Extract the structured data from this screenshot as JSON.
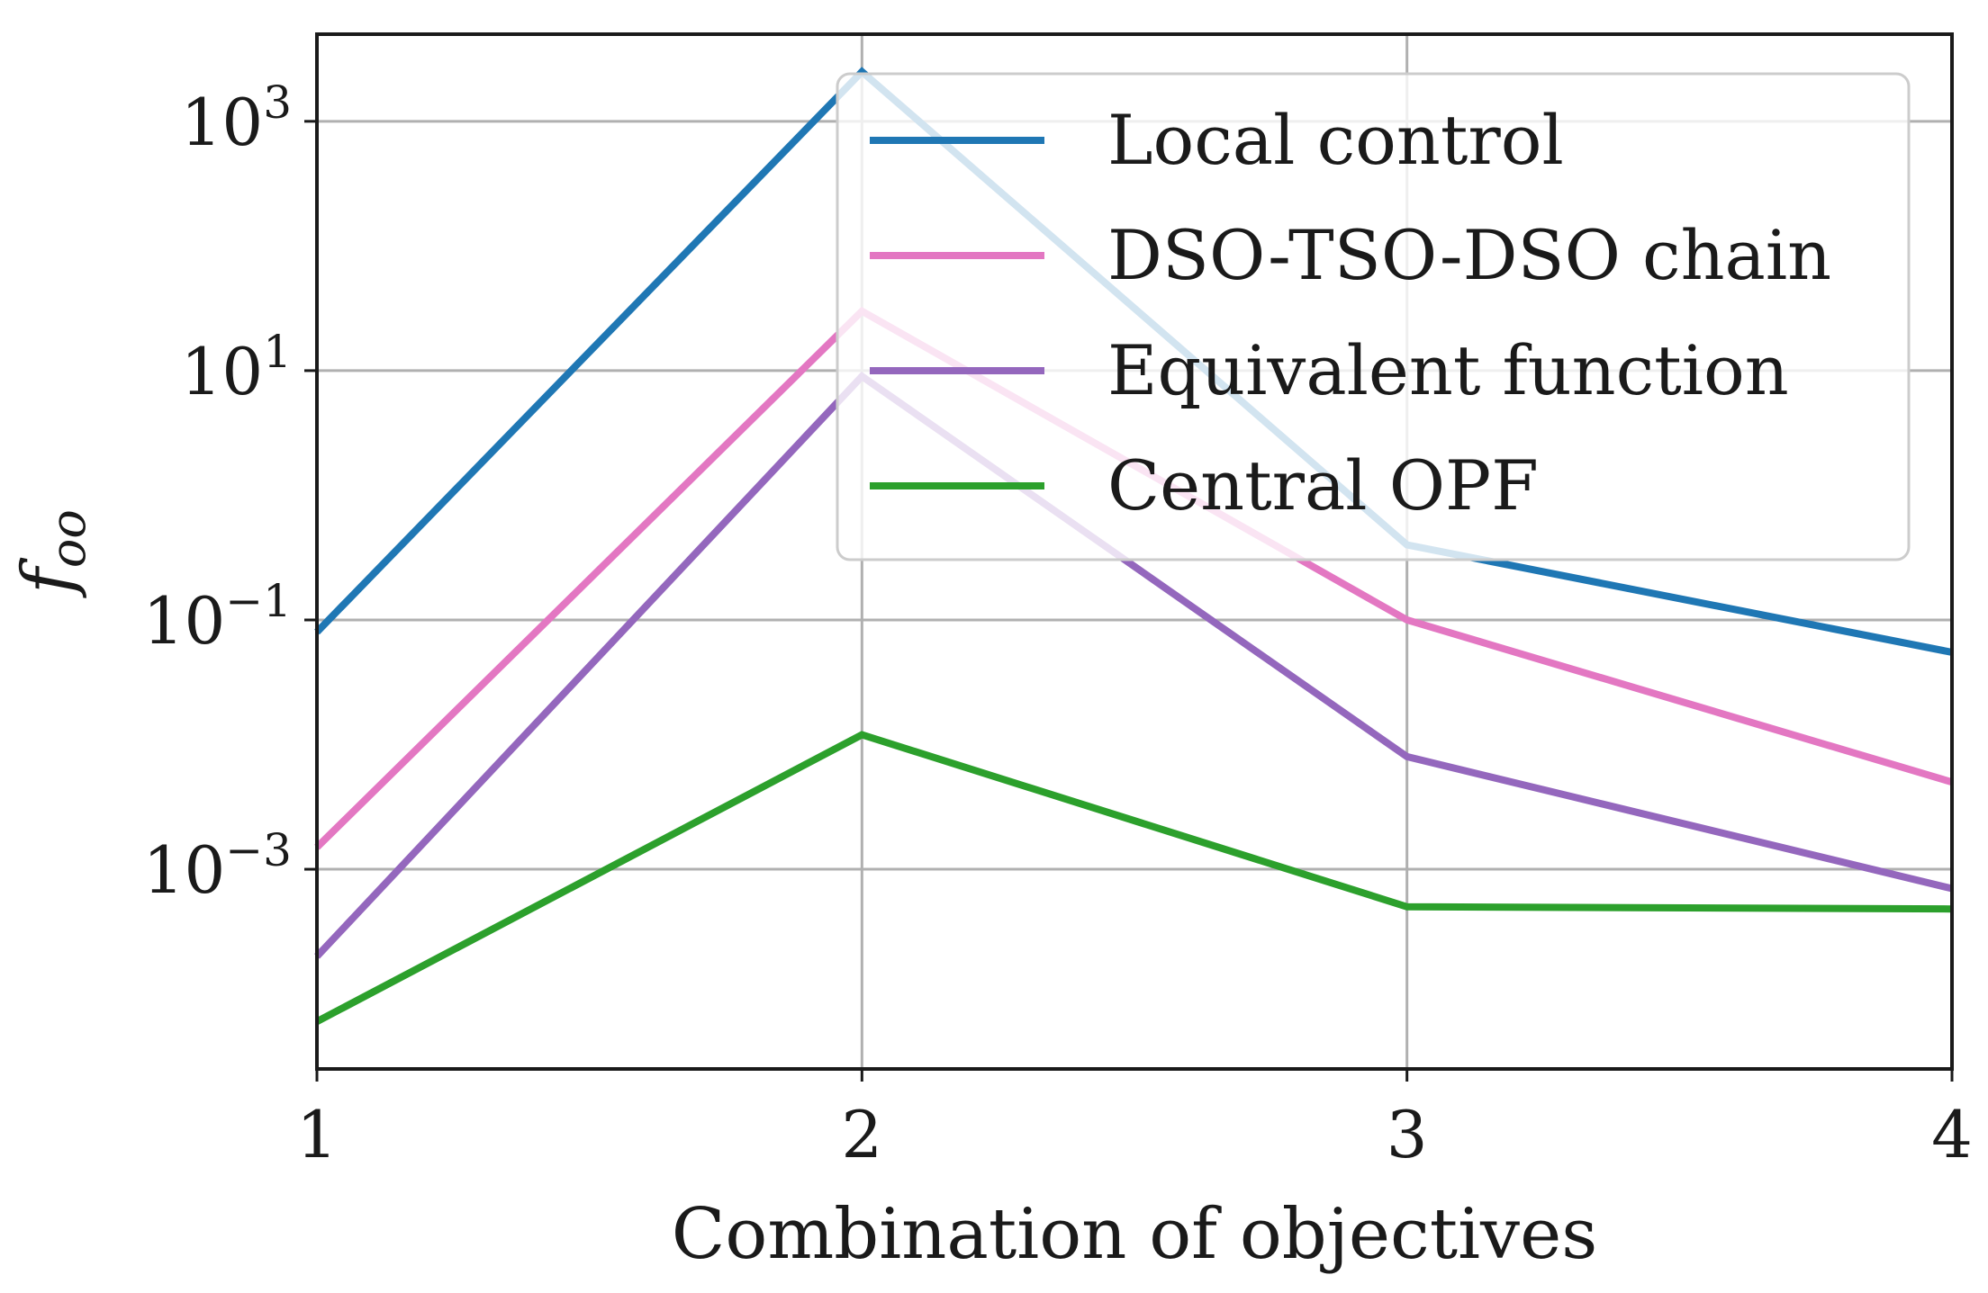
{
  "chart_data": {
    "type": "line",
    "xlabel": "Combination of objectives",
    "ylabel": "f",
    "ylabel_sub": "oo",
    "yscale": "log",
    "x": [
      1,
      2,
      3,
      4
    ],
    "xlim": [
      1,
      4
    ],
    "ylim": [
      2.5e-05,
      5000
    ],
    "xticks": [
      1,
      2,
      3,
      4
    ],
    "yticks": [
      {
        "value": 1000,
        "base": "10",
        "exp": "3"
      },
      {
        "value": 10,
        "base": "10",
        "exp": "1"
      },
      {
        "value": 0.1,
        "base": "10",
        "exp": "−1"
      },
      {
        "value": 0.001,
        "base": "10",
        "exp": "−3"
      }
    ],
    "grid": true,
    "legend_position": "top-right",
    "series": [
      {
        "name": "Local control",
        "color": "#1f77b4",
        "values": [
          0.08,
          2500,
          0.4,
          0.055
        ]
      },
      {
        "name": "DSO-TSO-DSO chain",
        "color": "#e377c2",
        "values": [
          0.0015,
          30,
          0.1,
          0.005
        ]
      },
      {
        "name": "Equivalent function",
        "color": "#9467bd",
        "values": [
          0.0002,
          9,
          0.008,
          0.0007
        ]
      },
      {
        "name": "Central OPF",
        "color": "#2ca02c",
        "values": [
          6e-05,
          0.012,
          0.0005,
          0.00048
        ]
      }
    ]
  }
}
